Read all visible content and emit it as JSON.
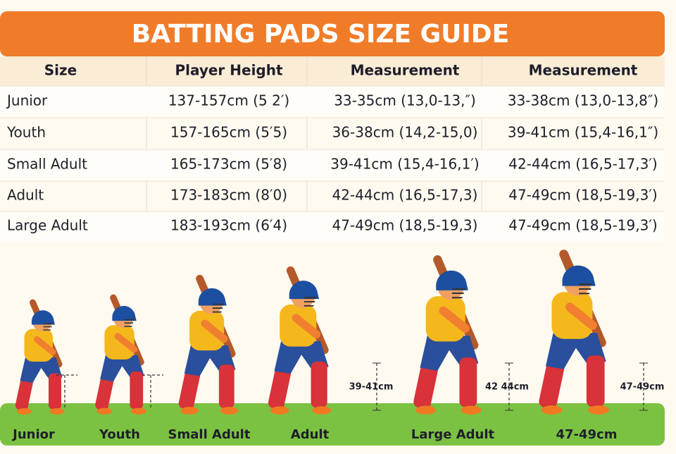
{
  "header": {
    "title": "BATTING PADS SIZE GUIDE"
  },
  "table": {
    "headers": [
      "Size",
      "Player Height",
      "Measurement",
      "Measurement"
    ],
    "rows": [
      [
        "Junior",
        "137-157cm (5 2′)",
        "33-35cm (13,0-13,″)",
        "33-38cm (13,0-13,8″)"
      ],
      [
        "Youth",
        "157-165cm (5′5)",
        "36-38cm (14,2-15,0)",
        "39-41cm (15,4-16,1″)"
      ],
      [
        "Small Adult",
        "165-173cm (5′8)",
        "39-41cm (15,4-16,1′)",
        "42-44cm (16,5-17,3′)"
      ],
      [
        "Adult",
        "173-183cm (8′0)",
        "42-44cm (16,5-17,3)",
        "47-49cm (18,5-19,3′)"
      ],
      [
        "Large Adult",
        "183-193cm (6′4)",
        "47-49cm (18,5-19,3)",
        "47-49cm (18,5-19,3′)"
      ]
    ]
  },
  "illustration": {
    "labels": [
      "Junior",
      "Youth",
      "Small Adult",
      "Adult",
      "Large Adult",
      "47-49cm"
    ],
    "annotations": [
      "39-41cm",
      "42 44cm",
      "47-49cm"
    ]
  }
}
